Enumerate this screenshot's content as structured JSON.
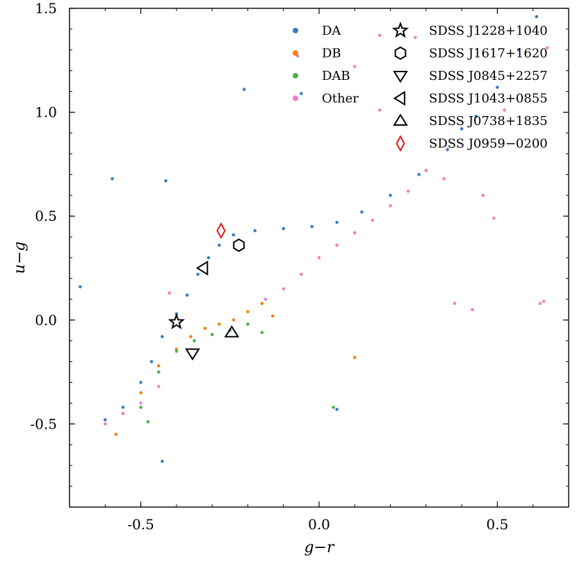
{
  "chart_data": {
    "type": "scatter",
    "title": "",
    "xlabel": "g−r",
    "ylabel": "u−g",
    "xlim": [
      -0.7,
      0.7
    ],
    "ylim": [
      1.5,
      -0.9
    ],
    "y_inverted": true,
    "grid": false,
    "legend_placement": "top-right",
    "x_ticks": [
      -0.5,
      0.0,
      0.5
    ],
    "x_tick_labels": [
      "-0.5",
      "0.0",
      "0.5"
    ],
    "y_ticks": [
      -0.5,
      0.0,
      0.5,
      1.0,
      1.5
    ],
    "y_tick_labels": [
      "-0.5",
      "0.0",
      "0.5",
      "1.0",
      "1.5"
    ],
    "series": [
      {
        "name": "DA",
        "color": "#3a7ebf",
        "marker": "dot",
        "points": [
          [
            -0.6,
            -0.48
          ],
          [
            -0.55,
            -0.42
          ],
          [
            -0.5,
            -0.3
          ],
          [
            -0.47,
            -0.2
          ],
          [
            -0.44,
            -0.08
          ],
          [
            -0.4,
            0.03
          ],
          [
            -0.37,
            0.12
          ],
          [
            -0.34,
            0.22
          ],
          [
            -0.31,
            0.3
          ],
          [
            -0.28,
            0.36
          ],
          [
            -0.24,
            0.41
          ],
          [
            -0.18,
            0.43
          ],
          [
            -0.1,
            0.44
          ],
          [
            -0.02,
            0.45
          ],
          [
            0.05,
            0.47
          ],
          [
            0.12,
            0.52
          ],
          [
            0.2,
            0.6
          ],
          [
            0.28,
            0.7
          ],
          [
            0.36,
            0.82
          ],
          [
            0.44,
            0.98
          ],
          [
            0.5,
            1.12
          ],
          [
            0.56,
            1.3
          ],
          [
            -0.67,
            0.16
          ],
          [
            -0.58,
            0.68
          ],
          [
            -0.44,
            -0.68
          ],
          [
            -0.43,
            0.67
          ],
          [
            -0.21,
            1.11
          ],
          [
            -0.05,
            1.09
          ],
          [
            0.05,
            -0.43
          ],
          [
            0.4,
            0.92
          ],
          [
            0.61,
            1.46
          ]
        ]
      },
      {
        "name": "DB",
        "color": "#f5820d",
        "marker": "dot",
        "points": [
          [
            -0.55,
            -0.45
          ],
          [
            -0.5,
            -0.35
          ],
          [
            -0.45,
            -0.22
          ],
          [
            -0.4,
            -0.14
          ],
          [
            -0.36,
            -0.08
          ],
          [
            -0.32,
            -0.04
          ],
          [
            -0.28,
            -0.02
          ],
          [
            -0.24,
            0.0
          ],
          [
            -0.2,
            0.04
          ],
          [
            -0.16,
            0.08
          ],
          [
            -0.13,
            0.02
          ],
          [
            0.1,
            -0.18
          ],
          [
            -0.57,
            -0.55
          ]
        ]
      },
      {
        "name": "DAB",
        "color": "#4daf4a",
        "marker": "dot",
        "points": [
          [
            -0.5,
            -0.42
          ],
          [
            -0.45,
            -0.25
          ],
          [
            -0.4,
            -0.15
          ],
          [
            -0.35,
            -0.1
          ],
          [
            -0.3,
            -0.07
          ],
          [
            -0.25,
            -0.05
          ],
          [
            -0.2,
            -0.02
          ],
          [
            -0.48,
            -0.49
          ],
          [
            0.04,
            -0.42
          ],
          [
            -0.16,
            -0.06
          ]
        ]
      },
      {
        "name": "Other",
        "color": "#f07fc0",
        "marker": "dot",
        "points": [
          [
            -0.6,
            -0.5
          ],
          [
            -0.55,
            -0.45
          ],
          [
            -0.5,
            -0.4
          ],
          [
            -0.45,
            -0.32
          ],
          [
            -0.15,
            0.1
          ],
          [
            -0.1,
            0.15
          ],
          [
            -0.05,
            0.22
          ],
          [
            0.0,
            0.3
          ],
          [
            0.05,
            0.36
          ],
          [
            0.1,
            0.42
          ],
          [
            0.15,
            0.48
          ],
          [
            0.2,
            0.55
          ],
          [
            0.25,
            0.62
          ],
          [
            0.3,
            0.72
          ],
          [
            0.38,
            0.08
          ],
          [
            0.43,
            0.05
          ],
          [
            0.62,
            0.08
          ],
          [
            0.63,
            0.09
          ],
          [
            0.52,
            1.01
          ],
          [
            0.64,
            1.31
          ],
          [
            0.1,
            1.22
          ],
          [
            -0.06,
            1.27
          ],
          [
            0.17,
            1.37
          ],
          [
            0.27,
            1.36
          ],
          [
            0.17,
            1.01
          ],
          [
            -0.42,
            0.13
          ],
          [
            0.49,
            0.49
          ],
          [
            0.46,
            0.6
          ],
          [
            0.35,
            0.68
          ]
        ]
      }
    ],
    "highlighted_objects": [
      {
        "name": "SDSS J1228+1040",
        "x": -0.4,
        "y": -0.01,
        "marker": "star",
        "color": "#000000"
      },
      {
        "name": "SDSS J1617+1620",
        "x": -0.225,
        "y": 0.36,
        "marker": "hexagon",
        "color": "#000000"
      },
      {
        "name": "SDSS J0845+2257",
        "x": -0.355,
        "y": -0.16,
        "marker": "triangle-down",
        "color": "#000000"
      },
      {
        "name": "SDSS J1043+0855",
        "x": -0.325,
        "y": 0.25,
        "marker": "triangle-left",
        "color": "#000000"
      },
      {
        "name": "SDSS J0738+1835",
        "x": -0.245,
        "y": -0.06,
        "marker": "triangle-up",
        "color": "#000000"
      },
      {
        "name": "SDSS J0959−0200",
        "x": -0.275,
        "y": 0.43,
        "marker": "diamond",
        "color": "#e41a1c"
      }
    ]
  }
}
